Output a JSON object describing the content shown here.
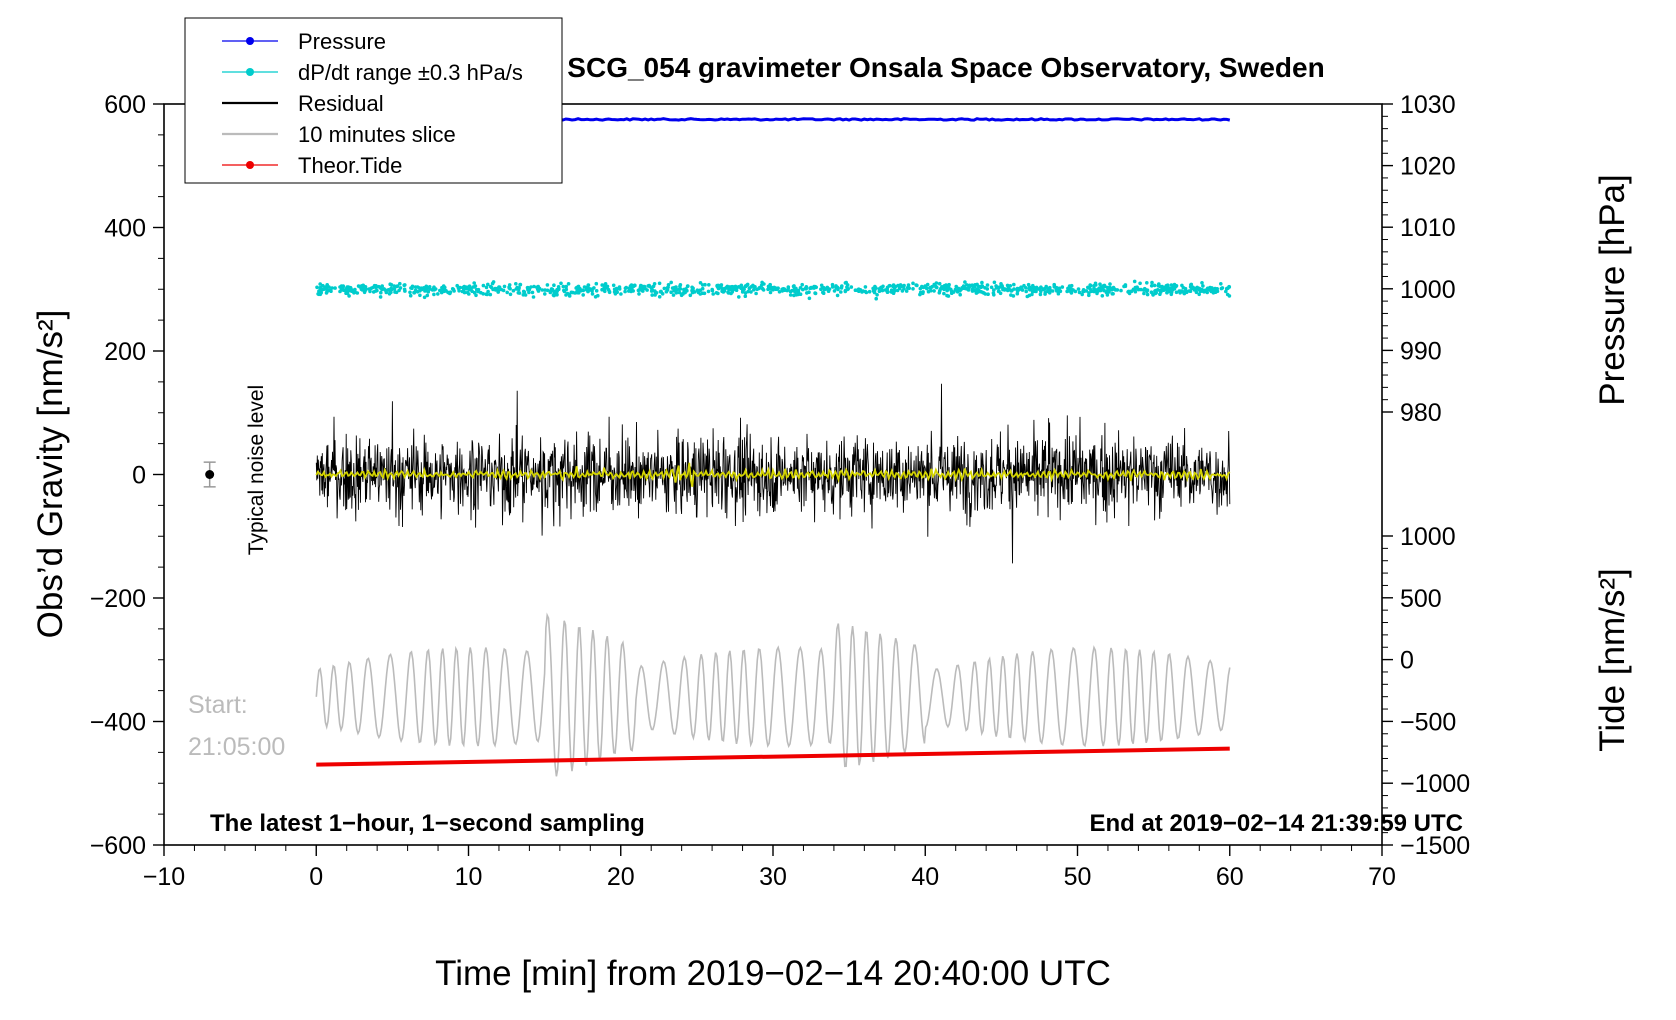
{
  "chart_data": {
    "type": "line",
    "title": "SCG_054 gravimeter Onsala Space Observatory, Sweden",
    "xlabel": "Time [min] from 2019−02−14 20:40:00 UTC",
    "ylabel_left": "Obs’d Gravity [nm/s²]",
    "ylabel_right_top": "Pressure [hPa]",
    "ylabel_right_bottom": "Tide [nm/s²]",
    "xlim": [
      -10,
      70
    ],
    "ylim_left": [
      -600,
      600
    ],
    "ylim_pressure": [
      980,
      1030
    ],
    "ylim_tide": [
      -1500,
      1000
    ],
    "x_ticks": [
      "−10",
      "0",
      "10",
      "20",
      "30",
      "40",
      "50",
      "60",
      "70"
    ],
    "x_tick_values": [
      -10,
      0,
      10,
      20,
      30,
      40,
      50,
      60,
      70
    ],
    "y_left_ticks": [
      "600",
      "400",
      "200",
      "0",
      "−200",
      "−400",
      "−600"
    ],
    "y_left_tick_values": [
      600,
      400,
      200,
      0,
      -200,
      -400,
      -600
    ],
    "y_pressure_ticks": [
      "1030",
      "1020",
      "1010",
      "1000",
      "990",
      "980"
    ],
    "y_pressure_tick_values": [
      1030,
      1020,
      1010,
      1000,
      990,
      980
    ],
    "y_tide_ticks": [
      "1000",
      "500",
      "0",
      "−500",
      "−1000",
      "−1500"
    ],
    "y_tide_tick_values": [
      1000,
      500,
      0,
      -500,
      -1000,
      -1500
    ],
    "legend_position": "top-left",
    "legend": [
      {
        "label": "Pressure",
        "color": "#0000ee",
        "marker": true
      },
      {
        "label": "dP/dt range ±0.3 hPa/s",
        "color": "#00cccc",
        "marker": true
      },
      {
        "label": "Residual",
        "color": "#000000",
        "marker": false
      },
      {
        "label": "10 minutes slice",
        "color": "#bbbbbb",
        "marker": false
      },
      {
        "label": "Theor.Tide",
        "color": "#ee0000",
        "marker": true
      }
    ],
    "series": [
      {
        "name": "Pressure",
        "color": "#0000ee",
        "axis": "pressure",
        "x_range": [
          0,
          60
        ],
        "level_hpa": 1027.5
      },
      {
        "name": "dP/dt range ±0.3 hPa/s",
        "color": "#00cccc",
        "axis": "left",
        "x_range": [
          0,
          60
        ],
        "center": 300,
        "spread": 15
      },
      {
        "name": "Residual",
        "color": "#000000",
        "axis": "left",
        "x_range": [
          0,
          60
        ],
        "center": 0,
        "spread": 90,
        "min": -200,
        "max": 210
      },
      {
        "name": "",
        "color": "#d4d400",
        "axis": "left",
        "x_range": [
          0,
          60
        ],
        "center": 0,
        "spread": 8
      },
      {
        "name": "10 minutes slice",
        "color": "#bbbbbb",
        "axis": "left",
        "x_range": [
          0,
          60
        ],
        "center": -360,
        "spread": 100
      },
      {
        "name": "Theor.Tide",
        "color": "#ee0000",
        "axis": "tide",
        "x": [
          0,
          60
        ],
        "y": [
          -850,
          -720
        ]
      }
    ],
    "noise_marker": {
      "x": -7,
      "y": 0,
      "error": 20,
      "label": "Typical noise level"
    },
    "annotations": {
      "start_line1": "Start:",
      "start_line2": "21:05:00",
      "bottom_left": "The latest 1−hour, 1−second sampling",
      "bottom_right": "End at 2019−02−14 21:39:59 UTC"
    }
  }
}
